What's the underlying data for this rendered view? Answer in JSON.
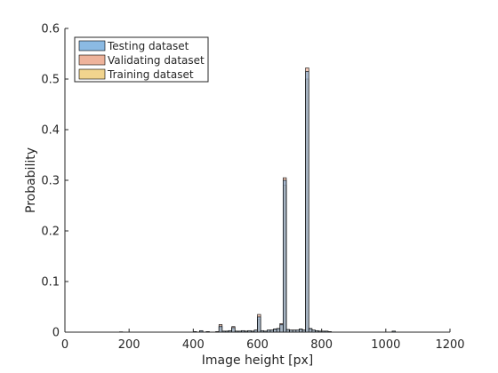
{
  "chart_data": {
    "type": "bar",
    "subtype": "overlaid-histogram",
    "title": "",
    "xlabel": "Image height [px]",
    "ylabel": "Probability",
    "xlim": [
      0,
      1200
    ],
    "ylim": [
      0,
      0.6
    ],
    "xticks": [
      0,
      200,
      400,
      600,
      800,
      1000,
      1200
    ],
    "yticks": [
      0,
      0.1,
      0.2,
      0.3,
      0.4,
      0.5,
      0.6
    ],
    "xtick_labels": [
      "0",
      "200",
      "400",
      "600",
      "800",
      "1000",
      "1200"
    ],
    "ytick_labels": [
      "0",
      "0.1",
      "0.2",
      "0.3",
      "0.4",
      "0.5",
      "0.6"
    ],
    "grid": false,
    "bin_width": 10,
    "legend": {
      "location": "top-left"
    },
    "bin_centers": [
      175,
      405,
      425,
      445,
      475,
      485,
      495,
      505,
      515,
      525,
      535,
      545,
      555,
      565,
      575,
      585,
      595,
      605,
      615,
      625,
      635,
      645,
      655,
      665,
      675,
      685,
      695,
      705,
      715,
      725,
      735,
      745,
      755,
      765,
      775,
      785,
      795,
      805,
      815,
      825,
      1025
    ],
    "series": [
      {
        "name": "Testing dataset",
        "color": "#77aede",
        "values": [
          0.0005,
          0.001,
          0.003,
          0.001,
          0.001,
          0.012,
          0.002,
          0.002,
          0.003,
          0.009,
          0.002,
          0.002,
          0.003,
          0.002,
          0.003,
          0.002,
          0.004,
          0.03,
          0.003,
          0.002,
          0.004,
          0.004,
          0.006,
          0.007,
          0.015,
          0.3,
          0.005,
          0.004,
          0.004,
          0.004,
          0.006,
          0.004,
          0.515,
          0.007,
          0.004,
          0.003,
          0.002,
          0.002,
          0.002,
          0.001,
          0.002
        ]
      },
      {
        "name": "Validating dataset",
        "color": "#eba68a",
        "values": [
          0.0005,
          0.001,
          0.003,
          0.001,
          0.001,
          0.015,
          0.002,
          0.002,
          0.003,
          0.011,
          0.002,
          0.002,
          0.003,
          0.002,
          0.003,
          0.002,
          0.004,
          0.035,
          0.003,
          0.002,
          0.004,
          0.004,
          0.006,
          0.007,
          0.017,
          0.305,
          0.005,
          0.004,
          0.004,
          0.004,
          0.006,
          0.004,
          0.522,
          0.007,
          0.004,
          0.003,
          0.002,
          0.002,
          0.002,
          0.001,
          0.002
        ]
      },
      {
        "name": "Training dataset",
        "color": "#efcc7a",
        "values": [
          0.0005,
          0.001,
          0.002,
          0.001,
          0.001,
          0.01,
          0.002,
          0.002,
          0.003,
          0.008,
          0.002,
          0.002,
          0.003,
          0.002,
          0.003,
          0.002,
          0.004,
          0.025,
          0.003,
          0.002,
          0.004,
          0.004,
          0.006,
          0.007,
          0.013,
          0.29,
          0.005,
          0.004,
          0.004,
          0.004,
          0.006,
          0.004,
          0.5,
          0.007,
          0.004,
          0.003,
          0.002,
          0.002,
          0.002,
          0.001,
          0.002
        ]
      }
    ]
  }
}
